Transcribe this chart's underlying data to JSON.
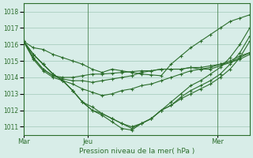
{
  "bg_color": "#d8ede8",
  "grid_color": "#a0c8b8",
  "line_color": "#2d6e2d",
  "title": "Pression niveau de la mer( hPa )",
  "ylim": [
    1010.5,
    1018.5
  ],
  "yticks": [
    1011,
    1012,
    1013,
    1014,
    1015,
    1016,
    1017,
    1018
  ],
  "xlabel_ticks": [
    0,
    48,
    144
  ],
  "xlabel_labels": [
    "Mar",
    "Jeu",
    "Mer"
  ],
  "vlines": [
    0,
    48,
    144
  ],
  "series": [
    [
      1016.2,
      1015.8,
      1015.7,
      1015.4,
      1015.2,
      1015.0,
      1014.8,
      1014.5,
      1014.3,
      1014.5,
      1014.4,
      1014.3,
      1014.2,
      1014.15,
      1014.1,
      1014.8,
      1015.3,
      1015.8,
      1016.2,
      1016.6,
      1017.0,
      1017.4,
      1017.6,
      1017.8
    ],
    [
      1016.2,
      1015.4,
      1014.8,
      1014.2,
      1013.8,
      1013.2,
      1012.5,
      1012.2,
      1011.8,
      1011.5,
      1011.2,
      1011.0,
      1011.2,
      1011.5,
      1012.0,
      1012.5,
      1013.0,
      1013.5,
      1013.8,
      1014.2,
      1014.6,
      1015.2,
      1016.0,
      1017.0
    ],
    [
      1016.2,
      1015.4,
      1014.8,
      1014.2,
      1013.8,
      1013.2,
      1012.5,
      1012.0,
      1011.8,
      1011.5,
      1011.2,
      1010.9,
      1011.2,
      1011.5,
      1012.0,
      1012.3,
      1012.8,
      1013.2,
      1013.5,
      1013.8,
      1014.2,
      1014.8,
      1015.5,
      1016.5
    ],
    [
      1016.2,
      1015.4,
      1014.8,
      1014.2,
      1013.8,
      1013.2,
      1012.5,
      1012.0,
      1011.7,
      1011.3,
      1010.9,
      1010.8,
      1011.2,
      1011.5,
      1012.0,
      1012.3,
      1012.7,
      1013.0,
      1013.3,
      1013.6,
      1014.0,
      1014.5,
      1015.2,
      1016.2
    ],
    [
      1016.2,
      1015.2,
      1014.5,
      1014.1,
      1014.0,
      1014.0,
      1014.1,
      1014.2,
      1014.2,
      1014.25,
      1014.3,
      1014.35,
      1014.4,
      1014.4,
      1014.5,
      1014.5,
      1014.5,
      1014.6,
      1014.6,
      1014.7,
      1014.8,
      1014.9,
      1015.2,
      1015.5
    ],
    [
      1016.2,
      1015.2,
      1014.5,
      1014.1,
      1013.9,
      1013.8,
      1013.8,
      1013.7,
      1013.8,
      1013.9,
      1014.0,
      1014.1,
      1014.3,
      1014.4,
      1014.5,
      1014.5,
      1014.5,
      1014.6,
      1014.5,
      1014.5,
      1014.7,
      1014.9,
      1015.1,
      1015.4
    ],
    [
      1016.2,
      1015.1,
      1014.4,
      1014.0,
      1013.8,
      1013.6,
      1013.3,
      1013.1,
      1012.9,
      1013.0,
      1013.2,
      1013.3,
      1013.5,
      1013.6,
      1013.8,
      1014.0,
      1014.2,
      1014.4,
      1014.5,
      1014.6,
      1014.8,
      1015.0,
      1015.3,
      1015.5
    ]
  ]
}
